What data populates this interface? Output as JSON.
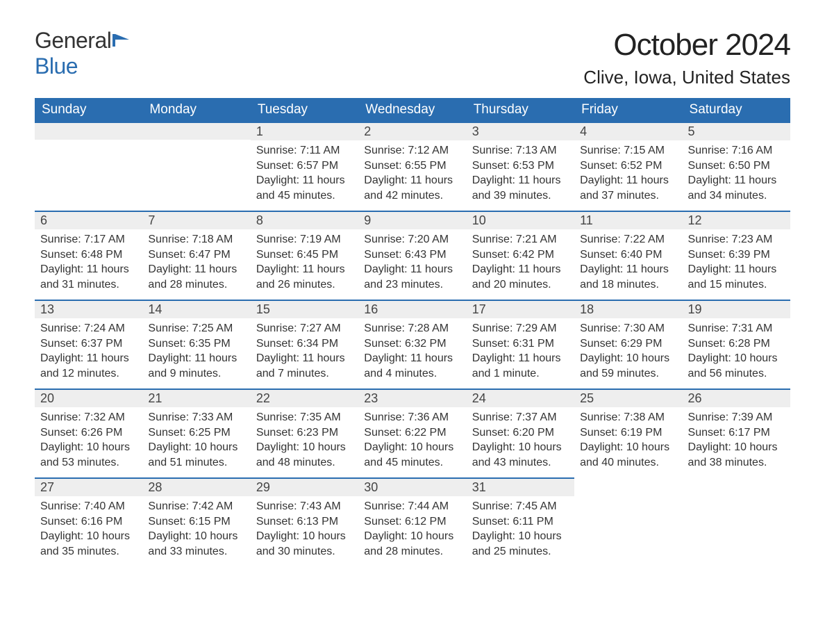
{
  "brand": {
    "text_general": "General",
    "text_blue": "Blue",
    "icon_fill": "#2a6db0"
  },
  "header": {
    "month_title": "October 2024",
    "location": "Clive, Iowa, United States"
  },
  "calendar": {
    "type": "table",
    "header_bg": "#2a6db0",
    "header_fg": "#ffffff",
    "daynum_bg": "#eeeeee",
    "daynum_border_top": "#2a6db0",
    "body_bg": "#ffffff",
    "text_color": "#333333",
    "font_family": "Arial",
    "day_header_fontsize": 19,
    "daynum_fontsize": 18,
    "body_fontsize": 16,
    "columns": [
      "Sunday",
      "Monday",
      "Tuesday",
      "Wednesday",
      "Thursday",
      "Friday",
      "Saturday"
    ],
    "weeks": [
      [
        null,
        null,
        {
          "n": "1",
          "sunrise": "7:11 AM",
          "sunset": "6:57 PM",
          "daylight": "11 hours and 45 minutes."
        },
        {
          "n": "2",
          "sunrise": "7:12 AM",
          "sunset": "6:55 PM",
          "daylight": "11 hours and 42 minutes."
        },
        {
          "n": "3",
          "sunrise": "7:13 AM",
          "sunset": "6:53 PM",
          "daylight": "11 hours and 39 minutes."
        },
        {
          "n": "4",
          "sunrise": "7:15 AM",
          "sunset": "6:52 PM",
          "daylight": "11 hours and 37 minutes."
        },
        {
          "n": "5",
          "sunrise": "7:16 AM",
          "sunset": "6:50 PM",
          "daylight": "11 hours and 34 minutes."
        }
      ],
      [
        {
          "n": "6",
          "sunrise": "7:17 AM",
          "sunset": "6:48 PM",
          "daylight": "11 hours and 31 minutes."
        },
        {
          "n": "7",
          "sunrise": "7:18 AM",
          "sunset": "6:47 PM",
          "daylight": "11 hours and 28 minutes."
        },
        {
          "n": "8",
          "sunrise": "7:19 AM",
          "sunset": "6:45 PM",
          "daylight": "11 hours and 26 minutes."
        },
        {
          "n": "9",
          "sunrise": "7:20 AM",
          "sunset": "6:43 PM",
          "daylight": "11 hours and 23 minutes."
        },
        {
          "n": "10",
          "sunrise": "7:21 AM",
          "sunset": "6:42 PM",
          "daylight": "11 hours and 20 minutes."
        },
        {
          "n": "11",
          "sunrise": "7:22 AM",
          "sunset": "6:40 PM",
          "daylight": "11 hours and 18 minutes."
        },
        {
          "n": "12",
          "sunrise": "7:23 AM",
          "sunset": "6:39 PM",
          "daylight": "11 hours and 15 minutes."
        }
      ],
      [
        {
          "n": "13",
          "sunrise": "7:24 AM",
          "sunset": "6:37 PM",
          "daylight": "11 hours and 12 minutes."
        },
        {
          "n": "14",
          "sunrise": "7:25 AM",
          "sunset": "6:35 PM",
          "daylight": "11 hours and 9 minutes."
        },
        {
          "n": "15",
          "sunrise": "7:27 AM",
          "sunset": "6:34 PM",
          "daylight": "11 hours and 7 minutes."
        },
        {
          "n": "16",
          "sunrise": "7:28 AM",
          "sunset": "6:32 PM",
          "daylight": "11 hours and 4 minutes."
        },
        {
          "n": "17",
          "sunrise": "7:29 AM",
          "sunset": "6:31 PM",
          "daylight": "11 hours and 1 minute."
        },
        {
          "n": "18",
          "sunrise": "7:30 AM",
          "sunset": "6:29 PM",
          "daylight": "10 hours and 59 minutes."
        },
        {
          "n": "19",
          "sunrise": "7:31 AM",
          "sunset": "6:28 PM",
          "daylight": "10 hours and 56 minutes."
        }
      ],
      [
        {
          "n": "20",
          "sunrise": "7:32 AM",
          "sunset": "6:26 PM",
          "daylight": "10 hours and 53 minutes."
        },
        {
          "n": "21",
          "sunrise": "7:33 AM",
          "sunset": "6:25 PM",
          "daylight": "10 hours and 51 minutes."
        },
        {
          "n": "22",
          "sunrise": "7:35 AM",
          "sunset": "6:23 PM",
          "daylight": "10 hours and 48 minutes."
        },
        {
          "n": "23",
          "sunrise": "7:36 AM",
          "sunset": "6:22 PM",
          "daylight": "10 hours and 45 minutes."
        },
        {
          "n": "24",
          "sunrise": "7:37 AM",
          "sunset": "6:20 PM",
          "daylight": "10 hours and 43 minutes."
        },
        {
          "n": "25",
          "sunrise": "7:38 AM",
          "sunset": "6:19 PM",
          "daylight": "10 hours and 40 minutes."
        },
        {
          "n": "26",
          "sunrise": "7:39 AM",
          "sunset": "6:17 PM",
          "daylight": "10 hours and 38 minutes."
        }
      ],
      [
        {
          "n": "27",
          "sunrise": "7:40 AM",
          "sunset": "6:16 PM",
          "daylight": "10 hours and 35 minutes."
        },
        {
          "n": "28",
          "sunrise": "7:42 AM",
          "sunset": "6:15 PM",
          "daylight": "10 hours and 33 minutes."
        },
        {
          "n": "29",
          "sunrise": "7:43 AM",
          "sunset": "6:13 PM",
          "daylight": "10 hours and 30 minutes."
        },
        {
          "n": "30",
          "sunrise": "7:44 AM",
          "sunset": "6:12 PM",
          "daylight": "10 hours and 28 minutes."
        },
        {
          "n": "31",
          "sunrise": "7:45 AM",
          "sunset": "6:11 PM",
          "daylight": "10 hours and 25 minutes."
        },
        null,
        null
      ]
    ],
    "labels": {
      "sunrise_prefix": "Sunrise: ",
      "sunset_prefix": "Sunset: ",
      "daylight_prefix": "Daylight: "
    }
  }
}
